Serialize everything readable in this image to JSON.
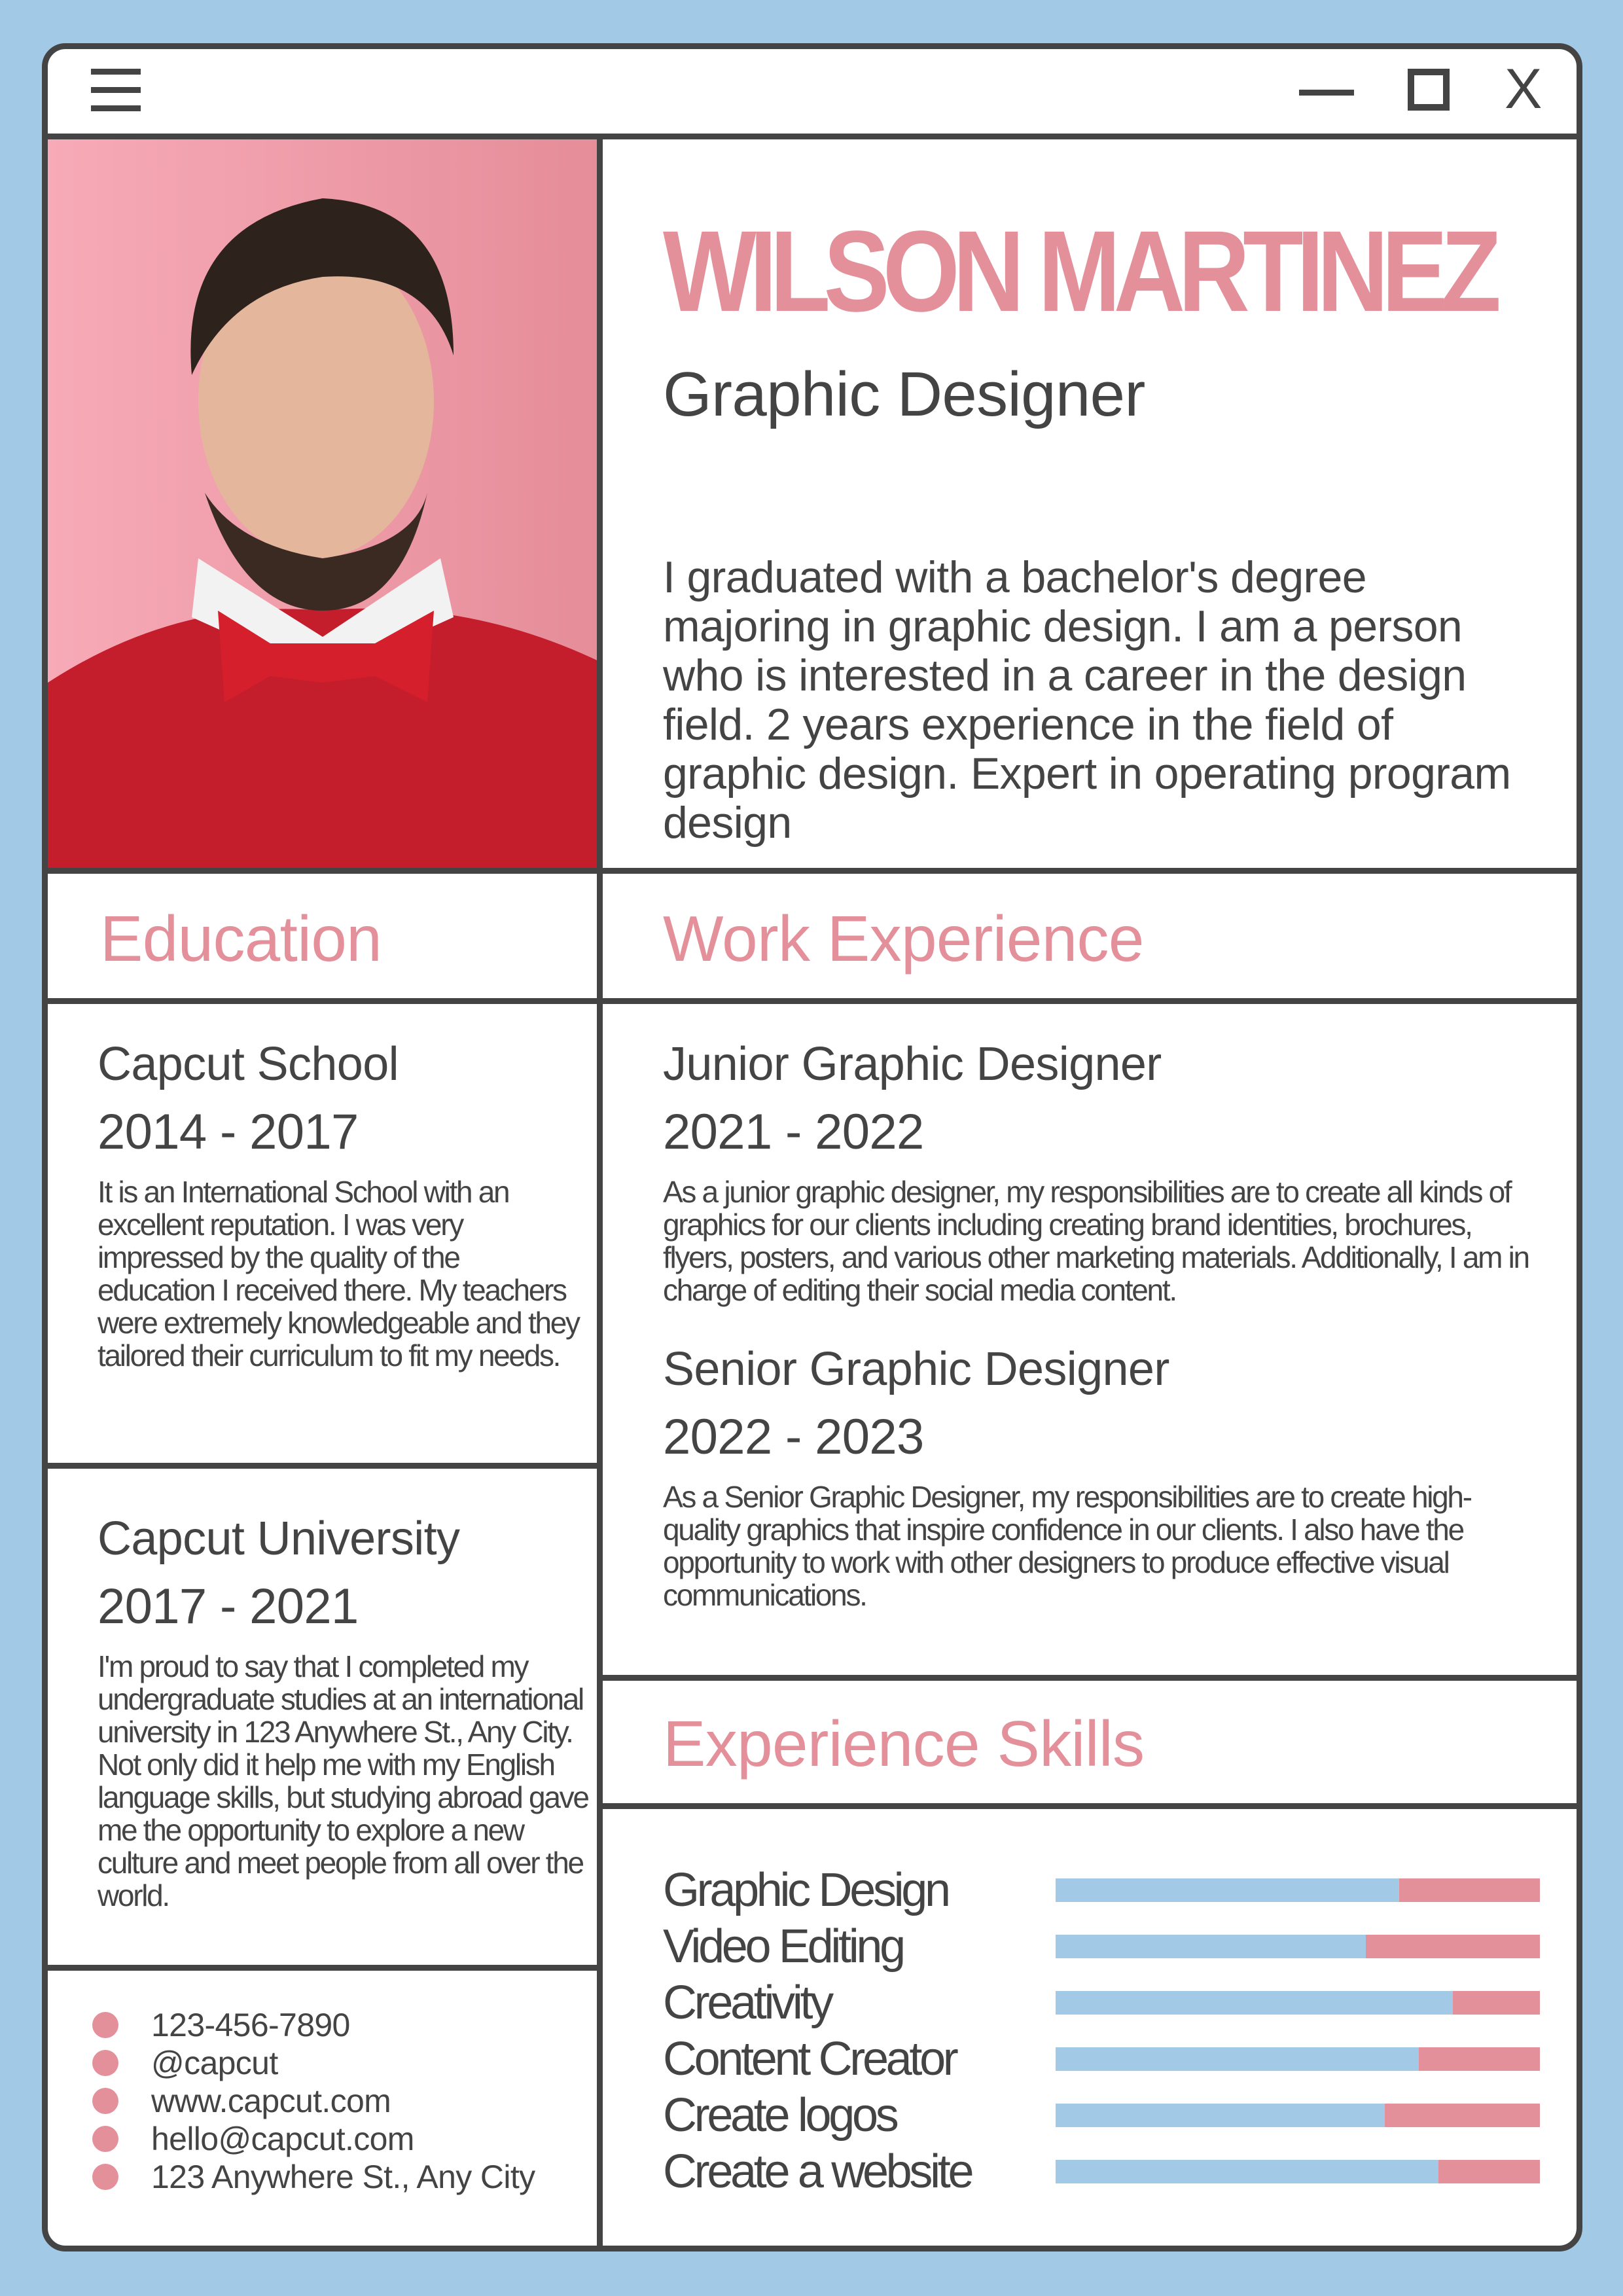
{
  "window": {
    "menu_icon": "hamburger-icon",
    "minimize_icon": "minimize-icon",
    "maximize_icon": "maximize-icon",
    "close_label": "X"
  },
  "profile": {
    "name": "WILSON MARTINEZ",
    "role": "Graphic Designer",
    "about": "I graduated with a bachelor's degree majoring in graphic design. I am a person who is interested in a career in the design field. 2 years experience in the field of graphic design. Expert in operating program design"
  },
  "education": {
    "heading": "Education",
    "items": [
      {
        "school": "Capcut School",
        "years": "2014 - 2017",
        "text": "It is an International School with an excellent reputation. I was very impressed by the quality of the education I received there. My teachers were extremely knowledgeable and they tailored their curriculum to fit my needs."
      },
      {
        "school": "Capcut University",
        "years": "2017 - 2021",
        "text": "I'm proud to say that I completed my undergraduate studies at an international university in 123 Anywhere St., Any City. Not only did it help me with my English language skills, but studying abroad gave me the opportunity to explore a new culture and meet people from all over the world."
      }
    ]
  },
  "work": {
    "heading": "Work Experience",
    "items": [
      {
        "title": "Junior Graphic Designer",
        "years": "2021 - 2022",
        "text": "As a junior graphic designer, my responsibilities are to create all kinds of graphics for our clients including creating brand identities, brochures, flyers, posters, and various other marketing materials. Additionally, I am in charge of editing their social media content."
      },
      {
        "title": "Senior Graphic Designer",
        "years": "2022 - 2023",
        "text": "As a Senior Graphic Designer, my responsibilities are to create high-quality graphics that inspire confidence in our clients. I also have the opportunity to work with other designers to produce effective visual communications."
      }
    ]
  },
  "skills": {
    "heading": "Experience Skills",
    "items": [
      {
        "label": "Graphic Design",
        "level": 0.71
      },
      {
        "label": "Video Editing",
        "level": 0.64
      },
      {
        "label": "Creativity",
        "level": 0.82
      },
      {
        "label": "Content Creator",
        "level": 0.75
      },
      {
        "label": "Create logos",
        "level": 0.68
      },
      {
        "label": "Create a website",
        "level": 0.79
      }
    ]
  },
  "contact": [
    "123-456-7890",
    "@capcut",
    "www.capcut.com",
    "hello@capcut.com",
    "123 Anywhere St., Any City"
  ],
  "colors": {
    "background": "#a2c9e5",
    "accent": "#e3909b",
    "border": "#444444"
  }
}
